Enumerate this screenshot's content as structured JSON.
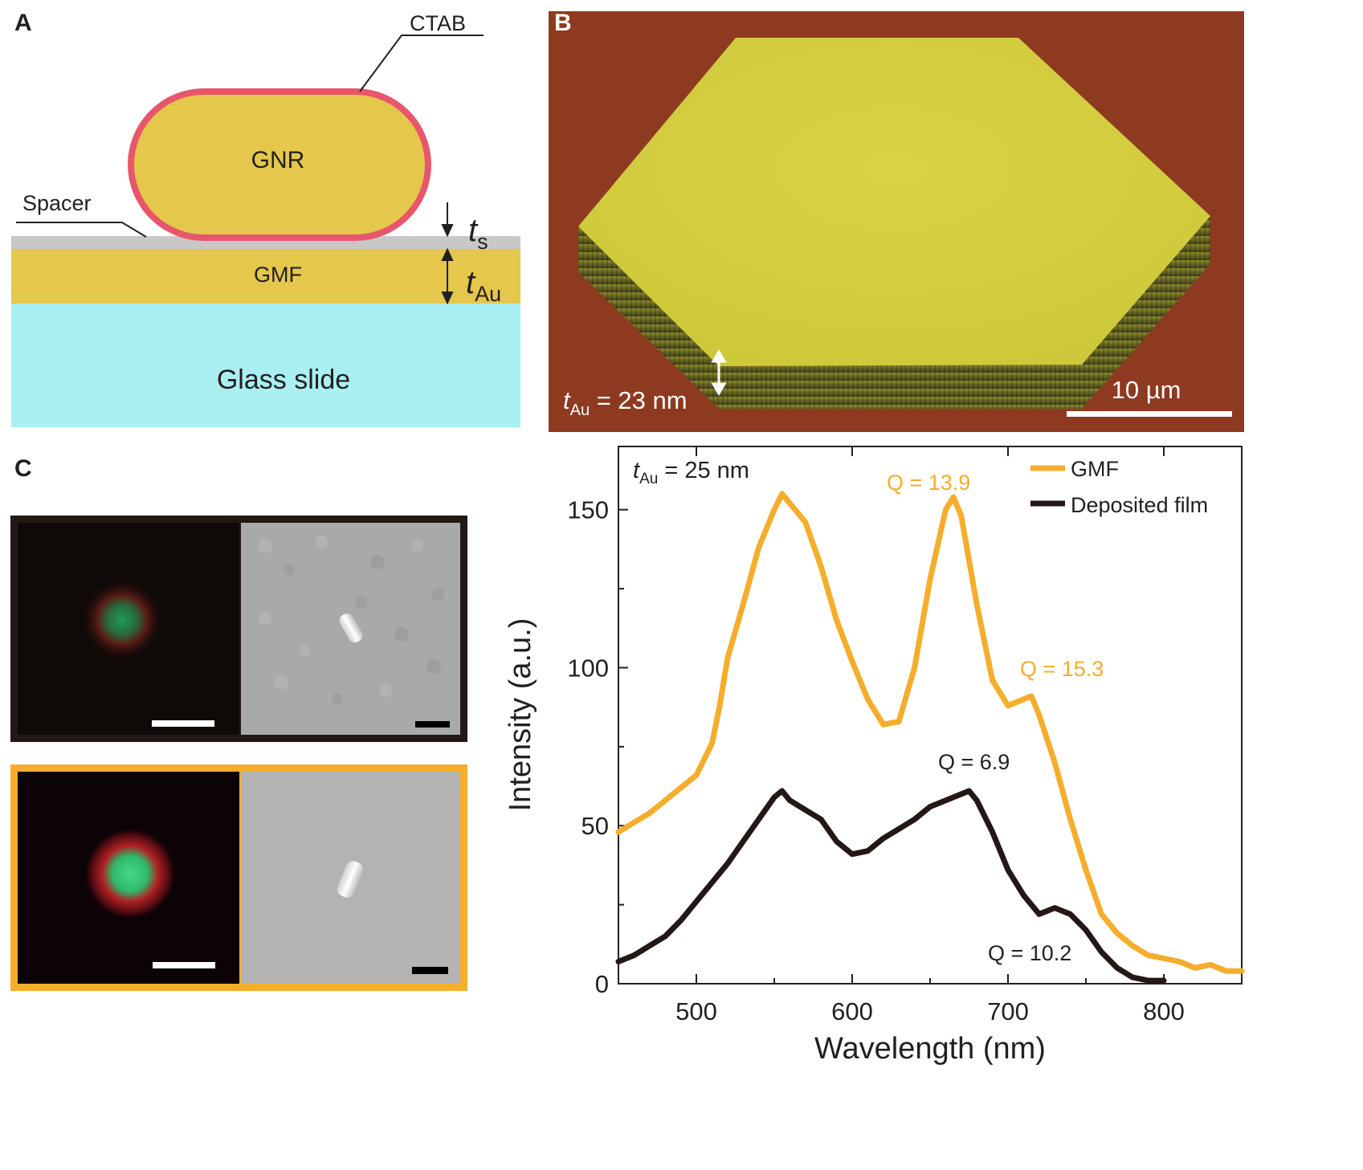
{
  "panels": {
    "a": {
      "letter": "A",
      "ctab_label": "CTAB",
      "gnr_label": "GNR",
      "spacer_label": "Spacer",
      "gmf_label": "GMF",
      "glass_label": "Glass slide",
      "ts_symbol": "t",
      "ts_subscript": "s",
      "tau_symbol": "t",
      "tau_subscript": "Au",
      "colors": {
        "gold": "#e4c74b",
        "ctab": "#e8566c",
        "glass": "#aaf0f2",
        "spacer": "#c8c8c8"
      }
    },
    "b": {
      "letter": "B",
      "thickness_symbol": "t",
      "thickness_subscript": "Au",
      "thickness_value": " = 23 nm",
      "scalebar_label": "10 µm",
      "colors": {
        "background": "#8e3a20",
        "platelet": "#d7d03f"
      }
    },
    "c": {
      "letter": "C",
      "colors": {
        "deposited_frame": "#231815",
        "gmf_frame": "#f5ad2b"
      }
    },
    "chart_annotation": {
      "symbol": "t",
      "subscript": "Au",
      "value": " = 25 nm"
    }
  },
  "chart_data": {
    "type": "line",
    "xlabel": "Wavelength (nm)",
    "ylabel": "Intensity (a.u.)",
    "xlim": [
      450,
      850
    ],
    "ylim": [
      0,
      170
    ],
    "x_ticks": [
      500,
      600,
      700,
      800
    ],
    "y_ticks": [
      0,
      50,
      100,
      150
    ],
    "legend_position": "top-right",
    "series": [
      {
        "name": "GMF",
        "color": "#f5ad2b",
        "x": [
          450,
          460,
          470,
          480,
          490,
          500,
          510,
          515,
          520,
          530,
          540,
          550,
          555,
          560,
          570,
          580,
          590,
          600,
          610,
          620,
          630,
          640,
          650,
          660,
          665,
          670,
          680,
          690,
          700,
          710,
          715,
          720,
          730,
          740,
          750,
          760,
          770,
          780,
          790,
          800,
          810,
          820,
          830,
          840,
          850
        ],
        "y": [
          48,
          51,
          54,
          58,
          62,
          66,
          76,
          88,
          103,
          120,
          138,
          150,
          155,
          152,
          146,
          132,
          115,
          102,
          90,
          82,
          83,
          100,
          128,
          150,
          154,
          148,
          120,
          96,
          88,
          90,
          91,
          85,
          70,
          52,
          36,
          22,
          16,
          12,
          9,
          8,
          7,
          5,
          6,
          4,
          4
        ]
      },
      {
        "name": "Deposited film",
        "color": "#231815",
        "x": [
          450,
          460,
          470,
          480,
          490,
          500,
          510,
          520,
          530,
          540,
          550,
          555,
          560,
          570,
          580,
          590,
          600,
          610,
          620,
          630,
          640,
          650,
          660,
          670,
          675,
          680,
          690,
          700,
          710,
          720,
          730,
          740,
          750,
          760,
          770,
          780,
          790,
          800
        ],
        "y": [
          7,
          9,
          12,
          15,
          20,
          26,
          32,
          38,
          45,
          52,
          59,
          61,
          58,
          55,
          52,
          45,
          41,
          42,
          46,
          49,
          52,
          56,
          58,
          60,
          61,
          58,
          48,
          36,
          28,
          22,
          24,
          22,
          17,
          10,
          5,
          2,
          1,
          1
        ]
      }
    ],
    "annotations": [
      {
        "text": "Q = 13.9",
        "series": "GMF"
      },
      {
        "text": "Q = 15.3",
        "series": "GMF"
      },
      {
        "text": "Q = 6.9",
        "series": "Deposited film"
      },
      {
        "text": "Q = 10.2",
        "series": "Deposited film"
      }
    ]
  }
}
